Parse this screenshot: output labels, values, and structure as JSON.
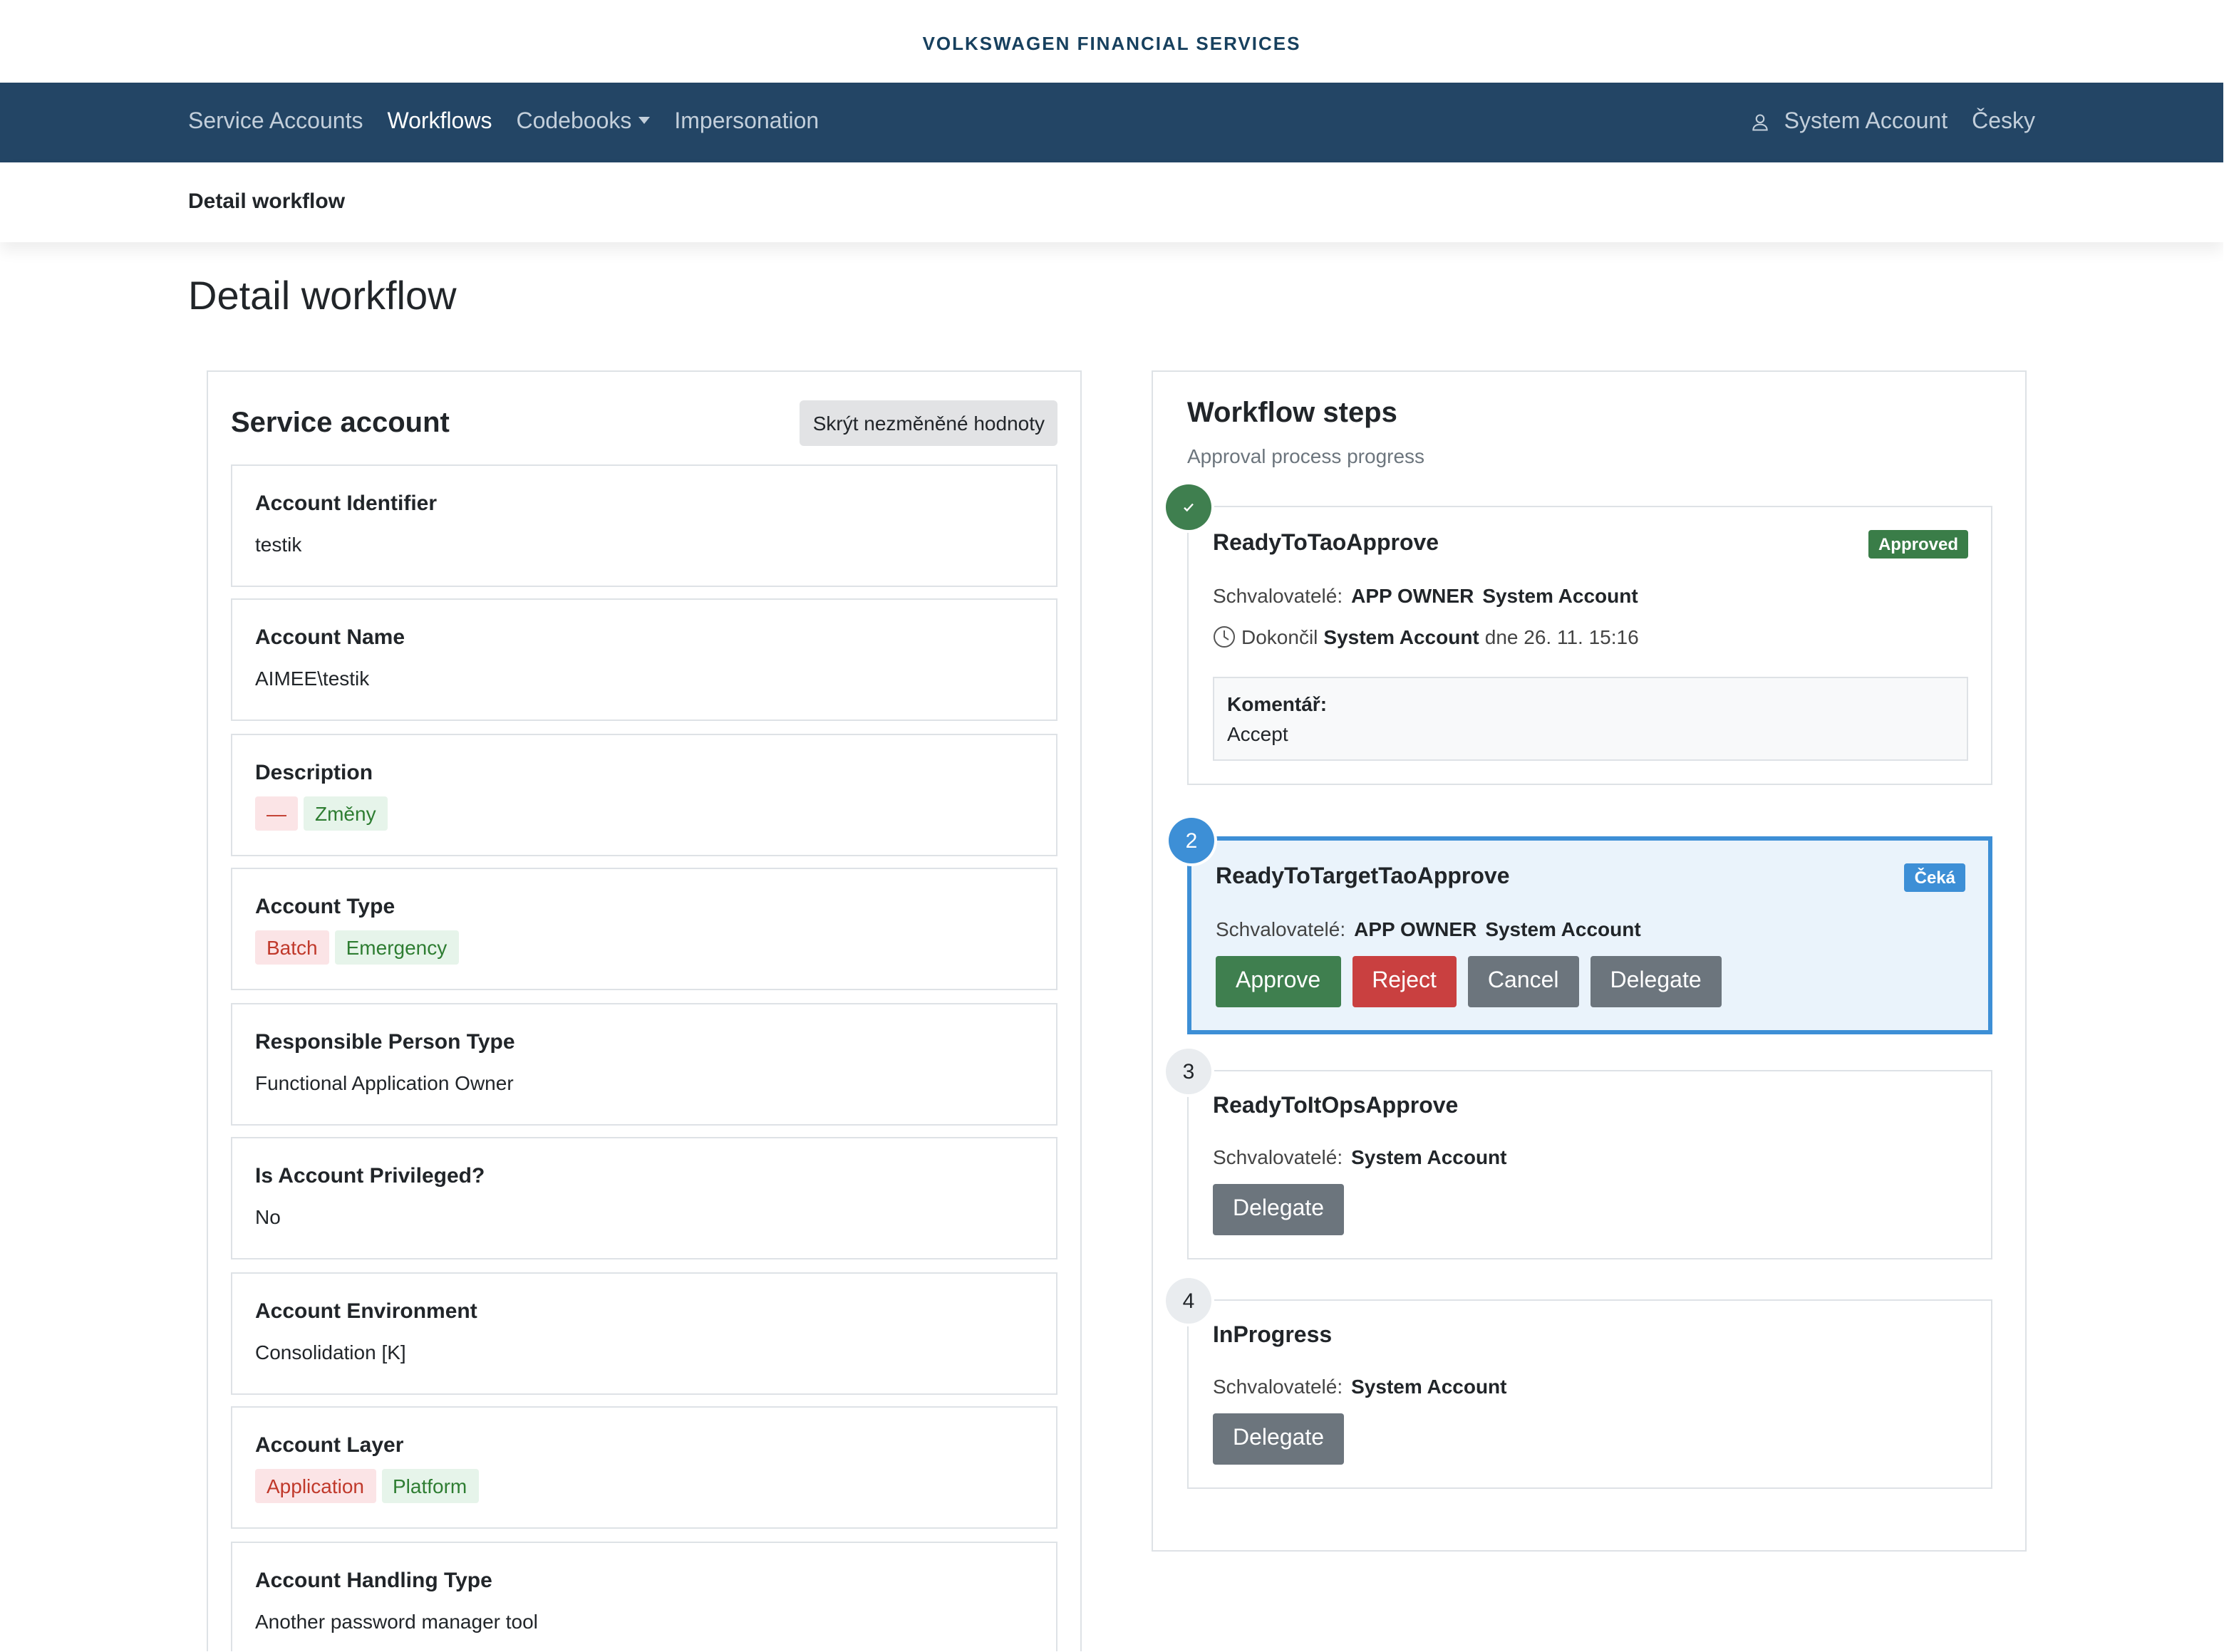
{
  "header": {
    "brand": "VOLKSWAGEN FINANCIAL SERVICES"
  },
  "nav": {
    "items": [
      {
        "label": "Service Accounts"
      },
      {
        "label": "Workflows",
        "active": true
      },
      {
        "label": "Codebooks",
        "dropdown": true
      },
      {
        "label": "Impersonation"
      }
    ],
    "user": "System Account",
    "language": "Česky"
  },
  "breadcrumb": "Detail workflow",
  "page_title": "Detail workflow",
  "service_account": {
    "title": "Service account",
    "toggle_button": "Skrýt nezměněné hodnoty",
    "fields": [
      {
        "label": "Account Identifier",
        "value": "testik"
      },
      {
        "label": "Account Name",
        "value": "AIMEE\\testik"
      },
      {
        "label": "Description",
        "removed": "—",
        "added": "Změny"
      },
      {
        "label": "Account Type",
        "removed": "Batch",
        "added": "Emergency"
      },
      {
        "label": "Responsible Person Type",
        "value": "Functional Application Owner"
      },
      {
        "label": "Is Account Privileged?",
        "value": "No"
      },
      {
        "label": "Account Environment",
        "value": "Consolidation [K]"
      },
      {
        "label": "Account Layer",
        "removed": "Application",
        "added": "Platform"
      },
      {
        "label": "Account Handling Type",
        "value": "Another password manager tool"
      }
    ]
  },
  "workflow": {
    "title": "Workflow steps",
    "subtitle": "Approval process progress",
    "approvers_label": "Schvalovatelé:",
    "steps": [
      {
        "name": "ReadyToTaoApprove",
        "marker_color": "#3f7f4f",
        "status": "Approved",
        "status_color": "#3a7d48",
        "approvers": [
          "APP OWNER",
          "System Account"
        ],
        "completed": {
          "prefix": "Dokončil",
          "by": "System Account",
          "date": "dne 26. 11. 15:16"
        },
        "comment": {
          "label": "Komentář:",
          "text": "Accept"
        }
      },
      {
        "number": "2",
        "name": "ReadyToTargetTaoApprove",
        "marker_color": "#3d8fd6",
        "highlight": true,
        "status": "Čeká",
        "status_color": "#3d8fd6",
        "approvers": [
          "APP OWNER",
          "System Account"
        ],
        "buttons": [
          {
            "label": "Approve",
            "color": "#3f7f4f"
          },
          {
            "label": "Reject",
            "color": "#c94040"
          },
          {
            "label": "Cancel",
            "color": "#6c757d"
          },
          {
            "label": "Delegate",
            "color": "#6c757d"
          }
        ]
      },
      {
        "number": "3",
        "name": "ReadyToItOpsApprove",
        "marker_color": "#e9ecef",
        "approvers": [
          "System Account"
        ],
        "buttons": [
          {
            "label": "Delegate",
            "color": "#6c757d"
          }
        ]
      },
      {
        "number": "4",
        "name": "InProgress",
        "marker_color": "#e9ecef",
        "approvers": [
          "System Account"
        ],
        "buttons": [
          {
            "label": "Delegate",
            "color": "#6c757d"
          }
        ]
      }
    ]
  }
}
